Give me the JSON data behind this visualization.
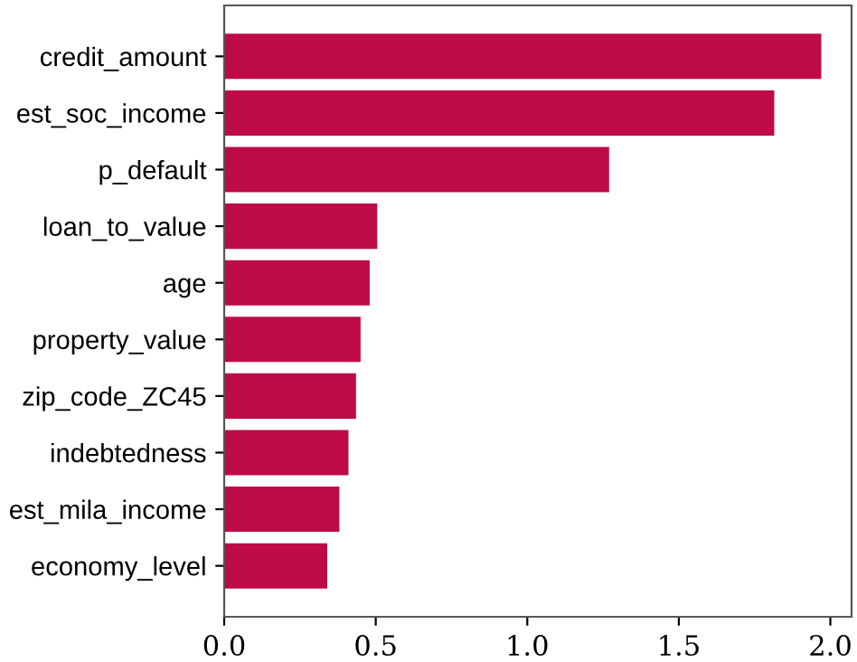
{
  "chart_data": {
    "type": "bar",
    "orientation": "horizontal",
    "categories": [
      "credit_amount",
      "est_soc_income",
      "p_default",
      "loan_to_value",
      "age",
      "property_value",
      "zip_code_ZC45",
      "indebtedness",
      "est_mila_income",
      "economy_level"
    ],
    "values": [
      1.97,
      1.815,
      1.27,
      0.505,
      0.48,
      0.45,
      0.435,
      0.41,
      0.38,
      0.34
    ],
    "color": "#be0a46",
    "xlim": [
      0,
      2.07
    ],
    "xticks": [
      {
        "value": 0,
        "label": "0.0"
      },
      0.5,
      {
        "value": 1,
        "label": "1.0"
      },
      1.5,
      {
        "value": 2,
        "label": "2.0"
      }
    ],
    "grid": false,
    "legend": false
  }
}
